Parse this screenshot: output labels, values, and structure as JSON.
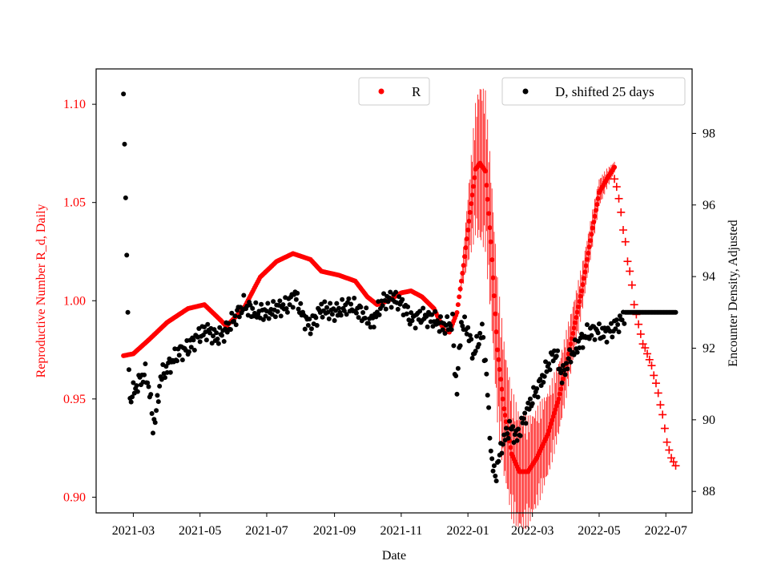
{
  "chart_data": {
    "type": "scatter",
    "title": "",
    "xlabel": "Date",
    "ylabel_left": "Reproductive Number R_d, Daily",
    "ylabel_right": "Encounter Density, Adjusted",
    "x_ticks": [
      "2021-03",
      "2021-05",
      "2021-07",
      "2021-09",
      "2021-11",
      "2022-01",
      "2022-03",
      "2022-05",
      "2022-07"
    ],
    "x_range": [
      "2021-01-26",
      "2022-07-25"
    ],
    "ylim_left": [
      0.892,
      1.118
    ],
    "ylim_right": [
      87.4,
      99.8
    ],
    "yticks_left": [
      "0.90",
      "0.95",
      "1.00",
      "1.05",
      "1.10"
    ],
    "yticks_right": [
      "88",
      "90",
      "92",
      "94",
      "96",
      "98"
    ],
    "colors": {
      "r": "#ff0000",
      "d": "#000000",
      "left_axis_text": "#ff0000"
    },
    "grid": false,
    "legend": [
      {
        "label": "R",
        "marker": "dot",
        "color": "#ff0000",
        "placement": "top-center"
      },
      {
        "label": "D, shifted 25 days",
        "marker": "dot",
        "color": "#000000",
        "placement": "top-right"
      }
    ],
    "series": [
      {
        "name": "R",
        "axis": "left",
        "marker": "dot",
        "color": "#ff0000",
        "points": [
          [
            "2021-02-20",
            0.972
          ],
          [
            "2021-03-01",
            0.973
          ],
          [
            "2021-03-15",
            0.98
          ],
          [
            "2021-04-01",
            0.989
          ],
          [
            "2021-04-20",
            0.996
          ],
          [
            "2021-05-05",
            0.998
          ],
          [
            "2021-05-20",
            0.99
          ],
          [
            "2021-05-25",
            0.987
          ],
          [
            "2021-06-10",
            0.996
          ],
          [
            "2021-06-25",
            1.012
          ],
          [
            "2021-07-10",
            1.02
          ],
          [
            "2021-07-25",
            1.024
          ],
          [
            "2021-08-10",
            1.021
          ],
          [
            "2021-08-20",
            1.015
          ],
          [
            "2021-09-05",
            1.013
          ],
          [
            "2021-09-20",
            1.01
          ],
          [
            "2021-10-01",
            1.002
          ],
          [
            "2021-10-10",
            0.998
          ],
          [
            "2021-10-20",
            1.0
          ],
          [
            "2021-11-01",
            1.004
          ],
          [
            "2021-11-10",
            1.005
          ],
          [
            "2021-11-20",
            1.002
          ],
          [
            "2021-12-01",
            0.996
          ],
          [
            "2021-12-10",
            0.985
          ],
          [
            "2021-12-15",
            0.984
          ],
          [
            "2021-12-22",
            0.994
          ],
          [
            "2021-12-28",
            1.018
          ],
          [
            "2022-01-03",
            1.045
          ],
          [
            "2022-01-08",
            1.067
          ],
          [
            "2022-01-12",
            1.07
          ],
          [
            "2022-01-17",
            1.066
          ],
          [
            "2022-01-22",
            1.03
          ],
          [
            "2022-01-28",
            0.975
          ],
          [
            "2022-02-03",
            0.945
          ],
          [
            "2022-02-10",
            0.922
          ],
          [
            "2022-02-17",
            0.913
          ],
          [
            "2022-02-25",
            0.913
          ],
          [
            "2022-03-05",
            0.92
          ],
          [
            "2022-03-15",
            0.932
          ],
          [
            "2022-03-25",
            0.95
          ],
          [
            "2022-04-05",
            0.978
          ],
          [
            "2022-04-15",
            1.005
          ],
          [
            "2022-04-25",
            1.037
          ],
          [
            "2022-05-01",
            1.055
          ],
          [
            "2022-05-08",
            1.062
          ],
          [
            "2022-05-15",
            1.068
          ]
        ],
        "band_start": "2021-12-25",
        "band_end": "2022-05-15"
      },
      {
        "name": "R",
        "axis": "left",
        "marker": "plus",
        "color": "#ff0000",
        "points": [
          [
            "2022-05-15",
            1.062
          ],
          [
            "2022-05-17",
            1.058
          ],
          [
            "2022-05-19",
            1.052
          ],
          [
            "2022-05-21",
            1.045
          ],
          [
            "2022-05-23",
            1.036
          ],
          [
            "2022-05-25",
            1.03
          ],
          [
            "2022-05-27",
            1.02
          ],
          [
            "2022-05-29",
            1.015
          ],
          [
            "2022-05-31",
            1.008
          ],
          [
            "2022-06-02",
            0.998
          ],
          [
            "2022-06-04",
            0.993
          ],
          [
            "2022-06-06",
            0.988
          ],
          [
            "2022-06-08",
            0.983
          ],
          [
            "2022-06-10",
            0.978
          ],
          [
            "2022-06-12",
            0.976
          ],
          [
            "2022-06-14",
            0.973
          ],
          [
            "2022-06-16",
            0.97
          ],
          [
            "2022-06-18",
            0.967
          ],
          [
            "2022-06-20",
            0.962
          ],
          [
            "2022-06-22",
            0.958
          ],
          [
            "2022-06-24",
            0.953
          ],
          [
            "2022-06-26",
            0.947
          ],
          [
            "2022-06-28",
            0.942
          ],
          [
            "2022-06-30",
            0.935
          ],
          [
            "2022-07-02",
            0.928
          ],
          [
            "2022-07-04",
            0.924
          ],
          [
            "2022-07-06",
            0.92
          ],
          [
            "2022-07-08",
            0.918
          ],
          [
            "2022-07-10",
            0.916
          ]
        ]
      },
      {
        "name": "D, shifted 25 days",
        "axis": "right",
        "marker": "dot",
        "color": "#000000",
        "points": [
          [
            "2021-02-20",
            99.1
          ],
          [
            "2021-02-21",
            97.7
          ],
          [
            "2021-02-22",
            96.2
          ],
          [
            "2021-02-23",
            94.6
          ],
          [
            "2021-02-24",
            93.0
          ],
          [
            "2021-02-25",
            91.4
          ],
          [
            "2021-02-26",
            90.6
          ],
          [
            "2021-03-05",
            91.0
          ],
          [
            "2021-03-12",
            91.3
          ],
          [
            "2021-03-16",
            90.8
          ],
          [
            "2021-03-19",
            89.8
          ],
          [
            "2021-03-22",
            90.2
          ],
          [
            "2021-03-26",
            91.2
          ],
          [
            "2021-04-05",
            91.6
          ],
          [
            "2021-04-12",
            91.9
          ],
          [
            "2021-04-20",
            92.0
          ],
          [
            "2021-05-01",
            92.4
          ],
          [
            "2021-05-08",
            92.5
          ],
          [
            "2021-05-15",
            92.3
          ],
          [
            "2021-05-22",
            92.4
          ],
          [
            "2021-06-01",
            92.8
          ],
          [
            "2021-06-10",
            93.2
          ],
          [
            "2021-06-20",
            93.0
          ],
          [
            "2021-07-01",
            93.0
          ],
          [
            "2021-07-10",
            93.1
          ],
          [
            "2021-07-20",
            93.2
          ],
          [
            "2021-07-27",
            93.5
          ],
          [
            "2021-08-03",
            92.9
          ],
          [
            "2021-08-10",
            92.6
          ],
          [
            "2021-08-20",
            93.1
          ],
          [
            "2021-09-01",
            93.0
          ],
          [
            "2021-09-15",
            93.2
          ],
          [
            "2021-09-25",
            93.0
          ],
          [
            "2021-10-05",
            92.7
          ],
          [
            "2021-10-15",
            93.3
          ],
          [
            "2021-10-25",
            93.4
          ],
          [
            "2021-11-03",
            93.2
          ],
          [
            "2021-11-10",
            92.8
          ],
          [
            "2021-11-20",
            92.9
          ],
          [
            "2021-12-01",
            92.8
          ],
          [
            "2021-12-10",
            92.6
          ],
          [
            "2021-12-18",
            92.7
          ],
          [
            "2021-12-20",
            91.4
          ],
          [
            "2021-12-22",
            90.9
          ],
          [
            "2021-12-26",
            92.7
          ],
          [
            "2022-01-01",
            92.5
          ],
          [
            "2022-01-06",
            91.8
          ],
          [
            "2022-01-14",
            92.5
          ],
          [
            "2022-01-18",
            91.3
          ],
          [
            "2022-01-20",
            90.1
          ],
          [
            "2022-01-23",
            88.8
          ],
          [
            "2022-01-26",
            88.4
          ],
          [
            "2022-02-01",
            89.3
          ],
          [
            "2022-02-08",
            89.8
          ],
          [
            "2022-02-15",
            89.5
          ],
          [
            "2022-02-22",
            90.1
          ],
          [
            "2022-03-01",
            90.6
          ],
          [
            "2022-03-08",
            91.0
          ],
          [
            "2022-03-15",
            91.5
          ],
          [
            "2022-03-22",
            91.9
          ],
          [
            "2022-03-28",
            91.2
          ],
          [
            "2022-04-05",
            91.8
          ],
          [
            "2022-04-12",
            92.1
          ],
          [
            "2022-04-20",
            92.4
          ],
          [
            "2022-04-27",
            92.5
          ],
          [
            "2022-05-05",
            92.4
          ],
          [
            "2022-05-12",
            92.5
          ],
          [
            "2022-05-22",
            92.8
          ],
          [
            "2022-05-25",
            93.0
          ],
          [
            "2022-06-01",
            93.0
          ],
          [
            "2022-06-10",
            93.0
          ],
          [
            "2022-06-20",
            93.0
          ],
          [
            "2022-06-30",
            93.0
          ],
          [
            "2022-07-10",
            93.0
          ]
        ]
      }
    ]
  }
}
